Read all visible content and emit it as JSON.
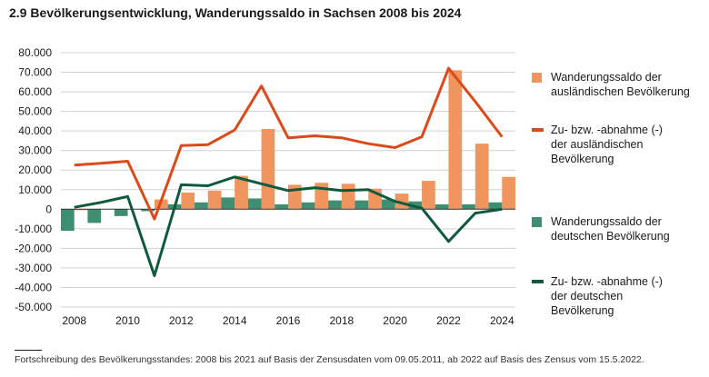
{
  "title": "2.9 Bevölkerungsentwicklung, Wanderungssaldo in Sachsen 2008 bis 2024",
  "footnote": "Fortschreibung des Bevölkerungsstandes: 2008 bis 2021 auf Basis der Zensusdaten vom 09.05.2011,  ab 2022 auf Basis des Zensus vom 15.5.2022.",
  "legend": [
    {
      "label": "Wanderungssaldo der\nausländischen Bevölkerung",
      "kind": "bar",
      "color": "#F0955E"
    },
    {
      "label": "Zu- bzw. -abnahme (-)\nder ausländischen\nBevölkerung",
      "kind": "line",
      "color": "#DA4A1A"
    },
    {
      "label": "Wanderungssaldo der\ndeutschen Bevölkerung",
      "kind": "bar",
      "color": "#3E8E72"
    },
    {
      "label": "Zu- bzw. -abnahme (-)\nder deutschen\nBevölkerung",
      "kind": "line",
      "color": "#0F5A3C"
    }
  ],
  "chart_data": {
    "type": "bar",
    "title": "2.9 Bevölkerungsentwicklung, Wanderungssaldo in Sachsen 2008 bis 2024",
    "xlabel": "",
    "ylabel": "",
    "x": [
      2008,
      2009,
      2010,
      2011,
      2012,
      2013,
      2014,
      2015,
      2016,
      2017,
      2018,
      2019,
      2020,
      2021,
      2022,
      2023,
      2024
    ],
    "x_tick_labels": [
      "2008",
      "2010",
      "2012",
      "2014",
      "2016",
      "2018",
      "2020",
      "2022",
      "2024"
    ],
    "y_tick_labels": [
      "80.000",
      "70.000",
      "60.000",
      "50.000",
      "40.000",
      "30.000",
      "20.000",
      "10.000",
      "0",
      "-10.000",
      "-20.000",
      "-30.000",
      "-40.000",
      "-50.000"
    ],
    "ylim": [
      -50000,
      80000
    ],
    "grid": "horizontal",
    "legend_position": "right",
    "series": [
      {
        "name": "Wanderungssaldo der ausländischen Bevölkerung",
        "type": "bar",
        "color": "#F0955E",
        "values": [
          -500,
          0,
          0,
          5000,
          8500,
          9500,
          17000,
          41000,
          12500,
          13500,
          13000,
          10500,
          8000,
          14500,
          71000,
          33500,
          16500
        ]
      },
      {
        "name": "Zu- bzw. -abnahme (-) der ausländischen Bevölkerung",
        "type": "line",
        "color": "#DA4A1A",
        "values": [
          22500,
          23500,
          24500,
          -5000,
          32500,
          33000,
          40500,
          63000,
          36500,
          37500,
          36500,
          33500,
          31500,
          37000,
          72000,
          55000,
          37000
        ]
      },
      {
        "name": "Wanderungssaldo der deutschen Bevölkerung",
        "type": "bar",
        "color": "#3E8E72",
        "values": [
          -11000,
          -7000,
          -3500,
          -1000,
          2500,
          3500,
          6000,
          5500,
          2500,
          3500,
          4500,
          4500,
          5000,
          4000,
          2500,
          2500,
          3500
        ]
      },
      {
        "name": "Zu- bzw. -abnahme (-) der deutschen Bevölkerung",
        "type": "line",
        "color": "#0F5A3C",
        "values": [
          1000,
          3500,
          6500,
          -34000,
          12500,
          12000,
          16500,
          13000,
          9500,
          11000,
          9500,
          10000,
          4000,
          500,
          -16500,
          -2000,
          0
        ]
      }
    ]
  }
}
